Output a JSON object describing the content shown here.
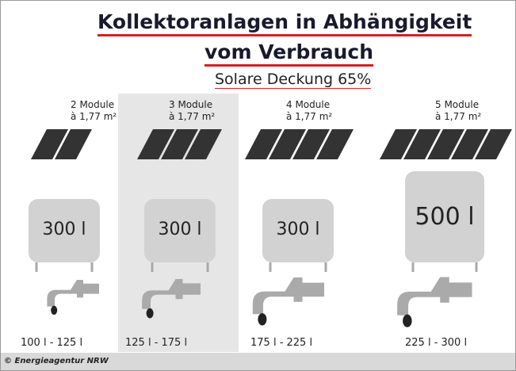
{
  "header": {
    "title_lines": [
      "Kollektoranlagen in Abhängigkeit",
      "vom Verbrauch"
    ],
    "subtitle": "Solare Deckung 65%"
  },
  "columns": [
    {
      "modules": "2 Module",
      "area": "à 1,77 m²",
      "tank": "300 l",
      "consumption": "100 l - 125 l"
    },
    {
      "modules": "3 Module",
      "area": "à 1,77 m²",
      "tank": "300 l",
      "consumption": "125 l - 175 l"
    },
    {
      "modules": "4 Module",
      "area": "à 1,77 m²",
      "tank": "300 l",
      "consumption": "175 l - 225 l"
    },
    {
      "modules": "5 Module",
      "area": "à 1,77 m²",
      "tank": "500 l",
      "consumption": "225 l - 300 l"
    }
  ],
  "footer": "© Energieagentur NRW"
}
